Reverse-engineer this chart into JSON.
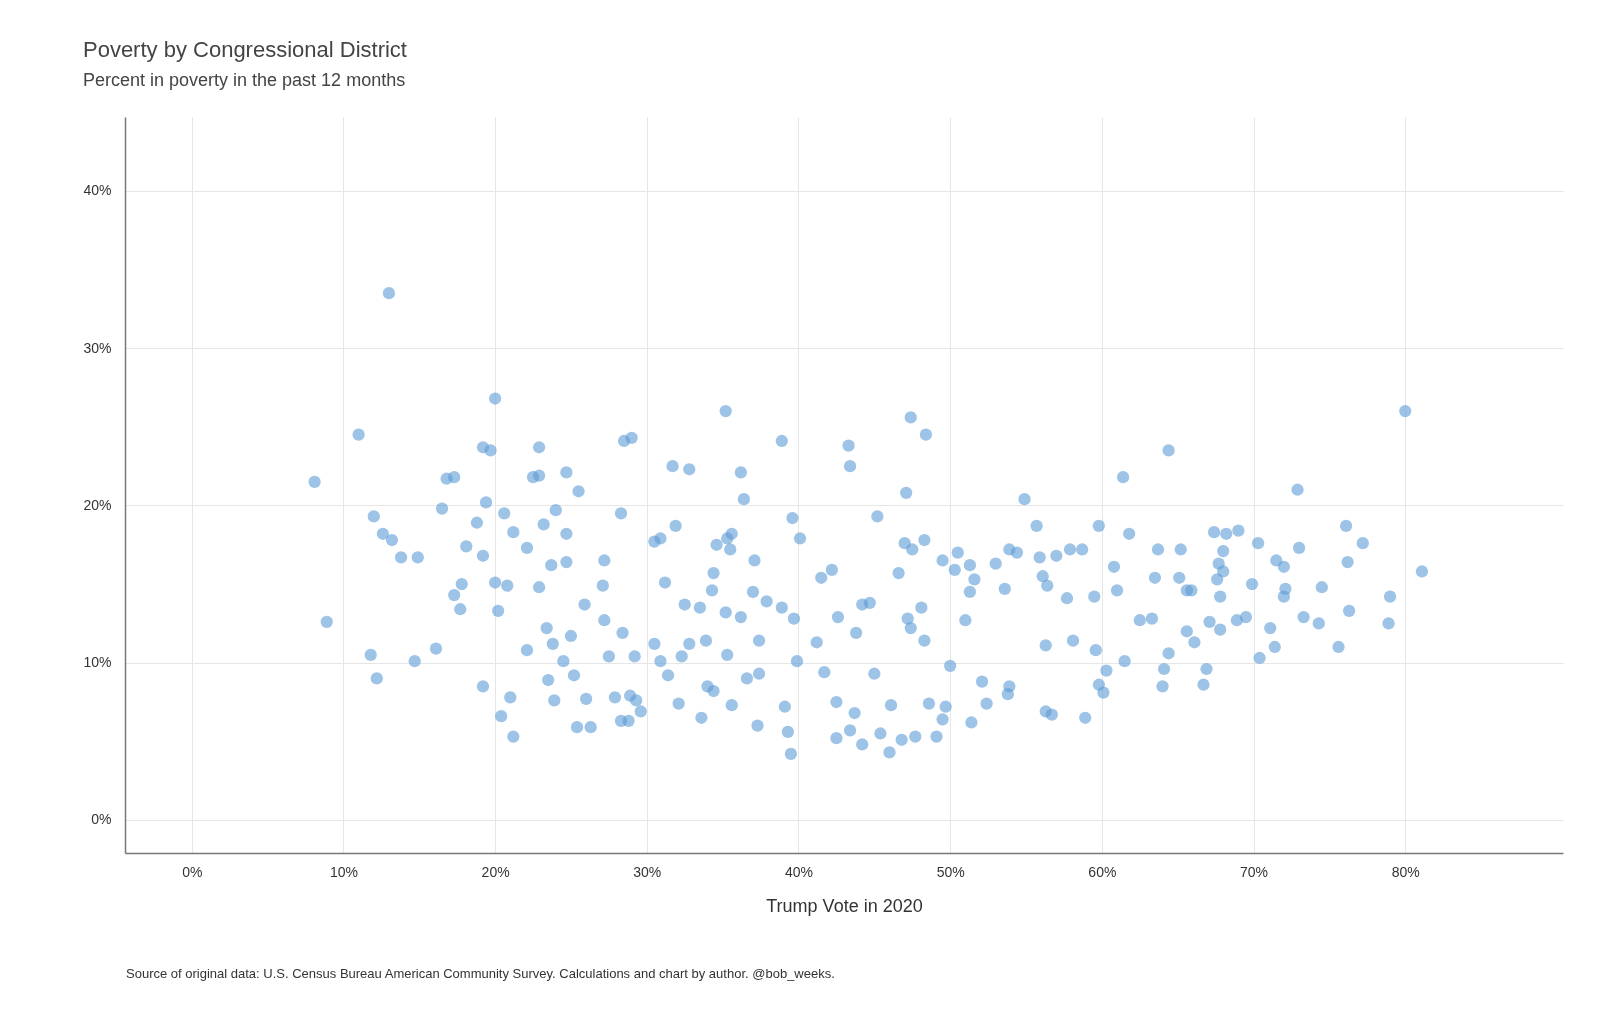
{
  "chart_data": {
    "type": "scatter",
    "title": "Poverty by Congressional District",
    "subtitle": "Percent in poverty in the past 12 months",
    "xlabel": "Trump Vote in 2020",
    "annotations": [
      "Source of original data: U.S. Census Bureau American Community Survey. Calculations and chart by author. @bob_weeks."
    ],
    "x": [
      8.1,
      8.9,
      11.0,
      13.0,
      12.0,
      12.6,
      13.2,
      13.8,
      14.9,
      11.8,
      12.2,
      14.7,
      16.1,
      16.5,
      16.8,
      17.3,
      17.3,
      17.7,
      17.8,
      18.1,
      18.8,
      19.2,
      19.7,
      20.0,
      19.4,
      19.2,
      20.0,
      20.2,
      20.6,
      20.8,
      21.2,
      22.1,
      19.2,
      20.4,
      21.0,
      21.2,
      22.1,
      22.5,
      22.9,
      22.9,
      22.9,
      23.2,
      23.4,
      23.7,
      24.0,
      23.8,
      23.5,
      23.9,
      24.7,
      24.7,
      24.7,
      24.5,
      25.0,
      25.5,
      25.2,
      25.4,
      25.9,
      26.0,
      26.3,
      27.2,
      27.1,
      27.2,
      27.5,
      27.9,
      28.5,
      29.0,
      28.3,
      28.4,
      28.3,
      28.8,
      28.9,
      29.3,
      29.2,
      29.6,
      30.5,
      30.9,
      30.5,
      30.9,
      31.2,
      31.4,
      31.7,
      32.8,
      31.9,
      32.1,
      32.3,
      32.5,
      32.8,
      33.5,
      33.6,
      34.0,
      33.9,
      34.4,
      34.3,
      34.6,
      34.4,
      35.2,
      35.3,
      35.6,
      35.5,
      35.2,
      35.3,
      35.6,
      36.2,
      36.4,
      36.2,
      37.0,
      37.1,
      36.6,
      37.3,
      37.4,
      37.4,
      37.9,
      38.9,
      38.9,
      39.1,
      39.3,
      39.5,
      39.6,
      40.1,
      39.7,
      39.9,
      41.2,
      41.7,
      41.5,
      42.2,
      42.5,
      42.5,
      42.6,
      43.3,
      43.4,
      43.4,
      43.7,
      43.8,
      44.2,
      44.2,
      44.7,
      45.0,
      45.2,
      45.4,
      46.0,
      46.1,
      46.6,
      47.1,
      47.0,
      47.4,
      47.2,
      47.4,
      47.5,
      46.8,
      47.7,
      48.3,
      48.4,
      48.3,
      48.1,
      48.6,
      49.1,
      49.5,
      49.7,
      50.0,
      50.5,
      50.3,
      49.5,
      51.4,
      51.3,
      51.6,
      51.3,
      51.0,
      52.1,
      52.4,
      53.0,
      53.6,
      53.9,
      54.4,
      53.9,
      53.8,
      54.9,
      55.7,
      55.9,
      56.1,
      56.4,
      57.0,
      56.3,
      56.7,
      56.3,
      57.7,
      57.9,
      58.7,
      58.9,
      58.1,
      59.8,
      59.5,
      59.6,
      59.8,
      60.1,
      60.3,
      61.4,
      60.8,
      61.0,
      61.5,
      61.8,
      62.5,
      63.3,
      63.7,
      63.5,
      64.0,
      64.4,
      64.1,
      64.4,
      65.2,
      65.1,
      65.6,
      65.6,
      65.9,
      66.1,
      66.7,
      66.9,
      67.4,
      67.7,
      68.0,
      68.2,
      68.0,
      67.6,
      67.8,
      67.8,
      67.1,
      69.0,
      68.9,
      69.5,
      69.9,
      70.3,
      70.4,
      71.1,
      71.4,
      71.5,
      72.0,
      72.0,
      72.1,
      72.9,
      73.0,
      73.3,
      74.5,
      74.3,
      75.6,
      76.1,
      76.2,
      76.3,
      77.2,
      78.9,
      79.0,
      80.0,
      81.1
    ],
    "values": [
      21.5,
      12.6,
      24.5,
      33.5,
      19.3,
      18.2,
      17.8,
      16.7,
      16.7,
      10.5,
      9.0,
      10.1,
      10.9,
      19.8,
      21.7,
      21.8,
      14.3,
      13.4,
      15.0,
      17.4,
      18.9,
      23.7,
      23.5,
      26.8,
      20.2,
      16.8,
      15.1,
      13.3,
      19.5,
      14.9,
      18.3,
      17.3,
      8.5,
      6.6,
      7.8,
      5.3,
      10.8,
      21.8,
      21.9,
      23.7,
      14.8,
      18.8,
      12.2,
      16.2,
      19.7,
      11.2,
      8.9,
      7.6,
      22.1,
      18.2,
      16.4,
      10.1,
      11.7,
      20.9,
      9.2,
      5.9,
      13.7,
      7.7,
      5.9,
      16.5,
      14.9,
      12.7,
      10.4,
      7.8,
      24.1,
      24.3,
      19.5,
      11.9,
      6.3,
      6.3,
      7.9,
      7.6,
      10.4,
      6.9,
      17.7,
      17.9,
      11.2,
      10.1,
      15.1,
      9.2,
      22.5,
      22.3,
      18.7,
      7.4,
      10.4,
      13.7,
      11.2,
      13.5,
      6.5,
      8.5,
      11.4,
      15.7,
      14.6,
      17.5,
      8.2,
      26.0,
      17.9,
      18.2,
      17.2,
      13.2,
      10.5,
      7.3,
      22.1,
      20.4,
      12.9,
      14.5,
      16.5,
      9.0,
      6.0,
      9.3,
      11.4,
      13.9,
      24.1,
      13.5,
      7.2,
      5.6,
      4.2,
      19.2,
      17.9,
      12.8,
      10.1,
      11.3,
      9.4,
      15.4,
      15.9,
      5.2,
      7.5,
      12.9,
      23.8,
      22.5,
      5.7,
      6.8,
      11.9,
      13.7,
      4.8,
      13.8,
      9.3,
      19.3,
      5.5,
      4.3,
      7.3,
      15.7,
      20.8,
      17.6,
      25.6,
      12.8,
      12.2,
      17.2,
      5.1,
      5.3,
      17.8,
      24.5,
      11.4,
      13.5,
      7.4,
      5.3,
      16.5,
      7.2,
      9.8,
      17.0,
      15.9,
      6.4,
      6.2,
      16.2,
      15.3,
      14.5,
      12.7,
      8.8,
      7.4,
      16.3,
      14.7,
      17.2,
      17.0,
      8.5,
      8.0,
      20.4,
      18.7,
      16.7,
      15.5,
      14.9,
      16.8,
      6.9,
      6.7,
      11.1,
      14.1,
      17.2,
      17.2,
      6.5,
      11.4,
      18.7,
      14.2,
      10.8,
      8.6,
      8.1,
      9.5,
      21.8,
      16.1,
      14.6,
      10.1,
      18.2,
      12.7,
      12.8,
      17.2,
      15.4,
      8.5,
      23.5,
      9.6,
      10.6,
      17.2,
      15.4,
      12.0,
      14.6,
      14.6,
      11.3,
      8.6,
      9.6,
      18.3,
      16.3,
      17.1,
      18.2,
      15.8,
      15.3,
      14.2,
      12.1,
      12.6,
      18.4,
      12.7,
      12.9,
      15.0,
      17.6,
      10.3,
      12.2,
      11.0,
      16.5,
      16.1,
      14.2,
      14.7,
      21.0,
      17.3,
      12.9,
      14.8,
      12.5,
      11.0,
      18.7,
      16.4,
      13.3,
      17.6,
      12.5,
      14.2,
      26.0,
      15.8
    ],
    "color": "#5b9bd5",
    "marker": "circle",
    "grid": true,
    "xlim": [
      -4.4,
      90.4
    ],
    "ylim": [
      -2.1,
      44.7
    ],
    "xticks": [
      {
        "value": 0,
        "label": "0%"
      },
      {
        "value": 10,
        "label": "10%"
      },
      {
        "value": 20,
        "label": "20%"
      },
      {
        "value": 30,
        "label": "30%"
      },
      {
        "value": 40,
        "label": "40%"
      },
      {
        "value": 50,
        "label": "50%"
      },
      {
        "value": 60,
        "label": "60%"
      },
      {
        "value": 70,
        "label": "70%"
      },
      {
        "value": 80,
        "label": "80%"
      }
    ],
    "yticks": [
      {
        "value": 0,
        "label": "0%"
      },
      {
        "value": 10,
        "label": "10%"
      },
      {
        "value": 20,
        "label": "20%"
      },
      {
        "value": 30,
        "label": "30%"
      },
      {
        "value": 40,
        "label": "40%"
      }
    ]
  }
}
